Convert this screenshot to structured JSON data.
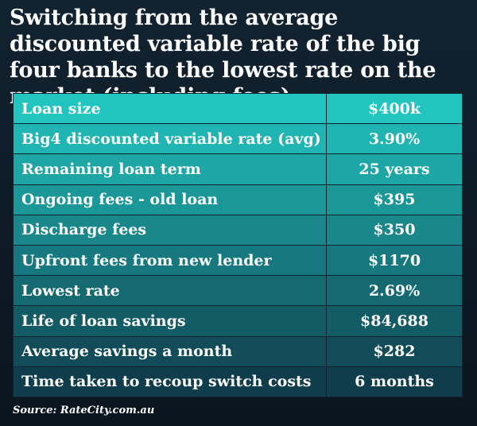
{
  "chart_data": {
    "type": "table",
    "title": "Switching from the average discounted variable rate of the big four banks to the lowest rate on the market (including fees)",
    "rows": [
      {
        "label": "Loan size",
        "value": "$400k"
      },
      {
        "label": "Big4 discounted variable rate (avg)",
        "value": "3.90%"
      },
      {
        "label": "Remaining loan term",
        "value": "25 years"
      },
      {
        "label": "Ongoing fees - old loan",
        "value": "$395"
      },
      {
        "label": "Discharge fees",
        "value": "$350"
      },
      {
        "label": "Upfront fees from new lender",
        "value": "$1170"
      },
      {
        "label": "Lowest rate",
        "value": "2.69%"
      },
      {
        "label": "Life of loan savings",
        "value": "$84,688"
      },
      {
        "label": "Average savings a month",
        "value": "$282"
      },
      {
        "label": "Time taken to recoup switch costs",
        "value": "6 months"
      }
    ],
    "source": "Source: RateCity.com.au"
  },
  "colors": {
    "row_top": "#22c4bf",
    "row_bottom": "#0f3d4b",
    "text": "#ffffff",
    "background": "#0e1a26"
  }
}
